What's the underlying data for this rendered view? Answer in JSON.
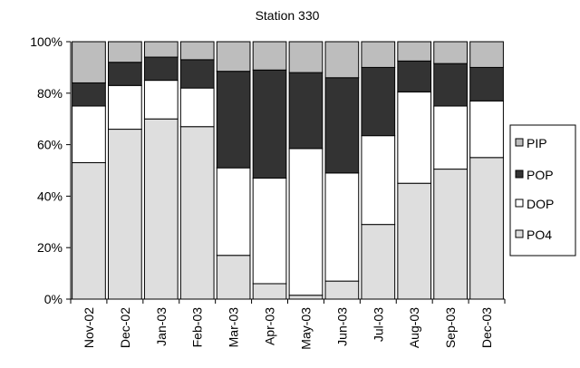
{
  "chart_data": {
    "type": "bar",
    "stacked": true,
    "percent": true,
    "title": "Station 330",
    "xlabel": "",
    "ylabel": "",
    "ylim": [
      0,
      100
    ],
    "y_ticks": [
      "0%",
      "20%",
      "40%",
      "60%",
      "80%",
      "100%"
    ],
    "categories": [
      "Nov-02",
      "Dec-02",
      "Jan-03",
      "Feb-03",
      "Mar-03",
      "Apr-03",
      "May-03",
      "Jun-03",
      "Jul-03",
      "Aug-03",
      "Sep-03",
      "Dec-03"
    ],
    "series": [
      {
        "name": "PO4",
        "color": "#dedede",
        "values": [
          53,
          66,
          70,
          67,
          17,
          6,
          1.5,
          7,
          29,
          45,
          50.5,
          55
        ]
      },
      {
        "name": "DOP",
        "color": "#ffffff",
        "values": [
          22,
          17,
          15,
          15,
          34,
          41,
          57,
          42,
          34.5,
          35.5,
          24.5,
          22
        ]
      },
      {
        "name": "POP",
        "color": "#333333",
        "values": [
          9,
          9,
          9,
          11,
          37.5,
          42,
          29.5,
          37,
          26.5,
          12,
          16.5,
          13
        ]
      },
      {
        "name": "PIP",
        "color": "#bdbdbd",
        "values": [
          16,
          8,
          6,
          7,
          11.5,
          11,
          12,
          14,
          10,
          7.5,
          8.5,
          10
        ]
      }
    ],
    "legend_order": [
      "PIP",
      "POP",
      "DOP",
      "PO4"
    ],
    "legend_position": "right",
    "grid": false
  }
}
